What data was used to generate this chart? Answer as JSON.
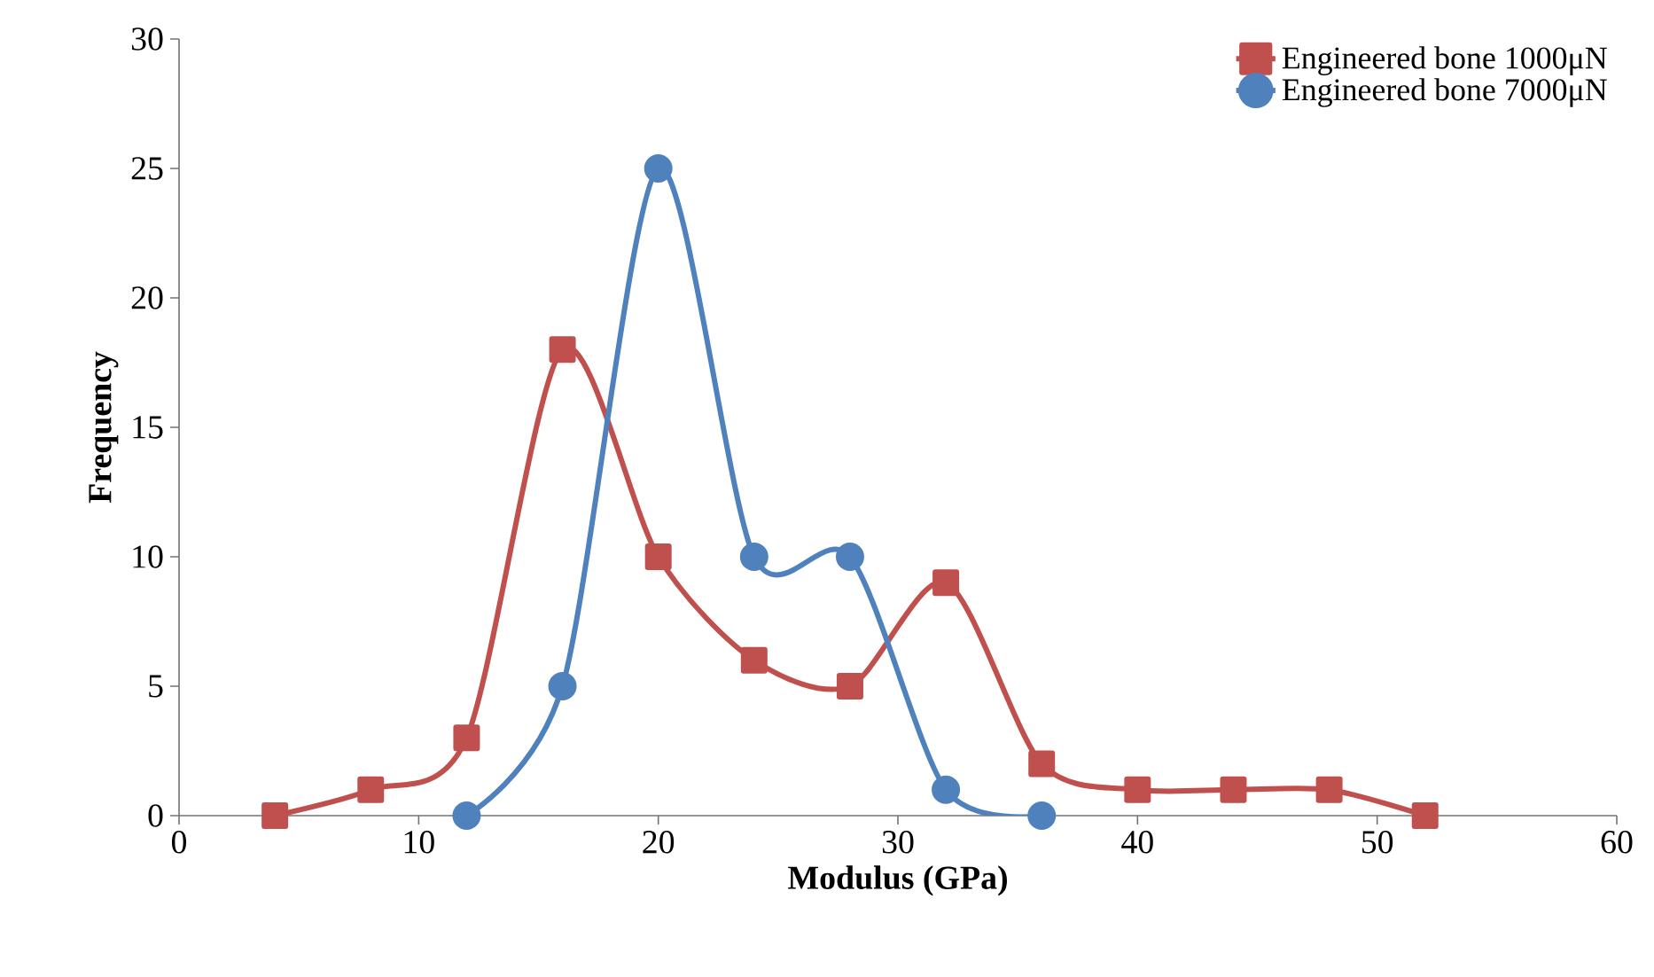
{
  "chart_data": {
    "type": "line",
    "xlabel": "Modulus (GPa)",
    "ylabel": "Frequency",
    "series": [
      {
        "name": "Engineered bone 1000μN",
        "color": "#c0504d",
        "marker": "square",
        "x": [
          4,
          8,
          12,
          16,
          20,
          24,
          28,
          32,
          36,
          40,
          44,
          48,
          52
        ],
        "values": [
          0,
          1,
          3,
          18,
          10,
          6,
          5,
          9,
          2,
          1,
          1,
          1,
          0
        ]
      },
      {
        "name": "Engineered bone 7000μN",
        "color": "#4f81bd",
        "marker": "circle",
        "x": [
          12,
          16,
          20,
          24,
          28,
          32,
          36
        ],
        "values": [
          0,
          5,
          25,
          10,
          10,
          1,
          0
        ]
      }
    ],
    "xlim": [
      0,
      60
    ],
    "xticks": [
      0,
      10,
      20,
      30,
      40,
      50,
      60
    ],
    "ylim": [
      0,
      30
    ],
    "yticks": [
      0,
      5,
      10,
      15,
      20,
      25,
      30
    ],
    "grid": false,
    "legend": "top right",
    "line_style": "solid"
  }
}
